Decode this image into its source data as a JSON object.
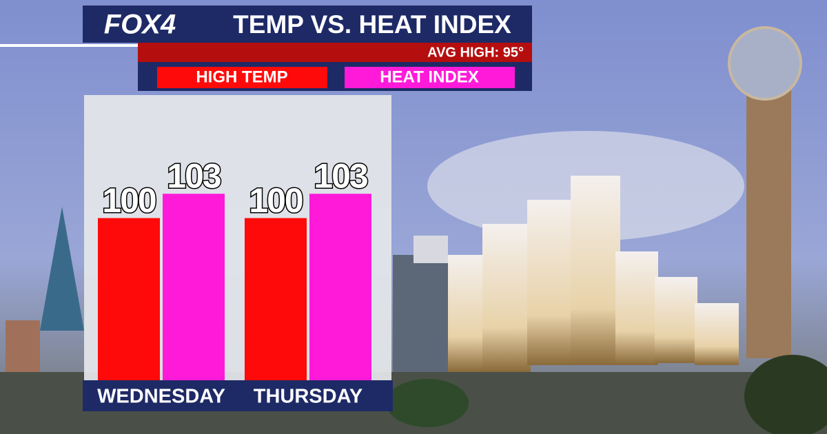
{
  "brand": "FOX4",
  "chart_data": {
    "type": "bar",
    "title": "TEMP VS. HEAT INDEX",
    "subtitle": "AVG HIGH: 95°",
    "categories": [
      "WEDNESDAY",
      "THURSDAY"
    ],
    "series": [
      {
        "name": "HIGH TEMP",
        "color": "#ff0a0a",
        "values": [
          100,
          100
        ]
      },
      {
        "name": "HEAT INDEX",
        "color": "#ff1ad9",
        "values": [
          103,
          103
        ]
      }
    ],
    "ylim": [
      80,
      115
    ]
  }
}
